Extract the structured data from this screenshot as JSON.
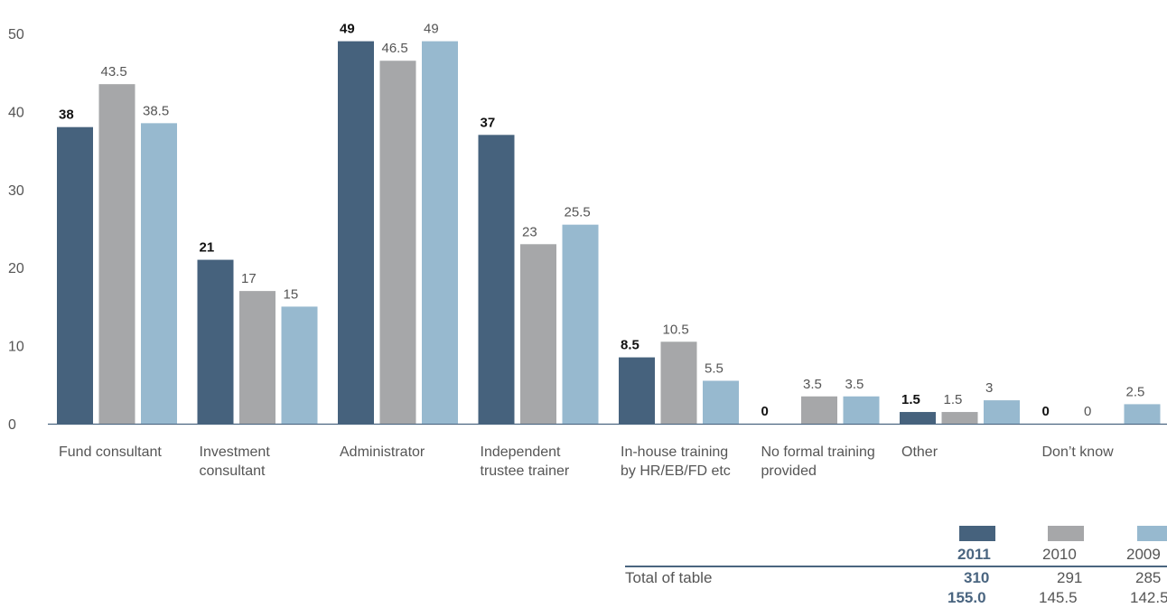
{
  "chart_data": {
    "type": "bar",
    "categories": [
      "Fund consultant",
      "Investment\nconsultant",
      "Administrator",
      "Independent\ntrustee trainer",
      "In-house training\nby HR/EB/FD etc",
      "No formal training\nprovided",
      "Other",
      "Don’t know"
    ],
    "series": [
      {
        "name": "2011",
        "color": "#46627d",
        "values": [
          38,
          21,
          49,
          37,
          8.5,
          0,
          1.5,
          0
        ],
        "labels": [
          "38",
          "21",
          "49",
          "37",
          "8.5",
          "0",
          "1.5",
          "0"
        ]
      },
      {
        "name": "2010",
        "color": "#a6a7a9",
        "values": [
          43.5,
          17,
          46.5,
          23,
          10.5,
          3.5,
          1.5,
          0
        ],
        "labels": [
          "43.5",
          "17",
          "46.5",
          "23",
          "10.5",
          "3.5",
          "1.5",
          "0"
        ]
      },
      {
        "name": "2009",
        "color": "#97b9cf",
        "values": [
          38.5,
          15,
          49,
          25.5,
          5.5,
          3.5,
          3,
          2.5
        ],
        "labels": [
          "38.5",
          "15",
          "49",
          "25.5",
          "5.5",
          "3.5",
          "3",
          "2.5"
        ]
      }
    ],
    "yticks": [
      "0",
      "10",
      "20",
      "30",
      "40",
      "50"
    ],
    "ylim": [
      0,
      50
    ],
    "grid": false
  },
  "legend": {
    "years": [
      "2011",
      "2010",
      "2009"
    ],
    "row_label": "Total of table",
    "totals": [
      "310",
      "291",
      "285"
    ],
    "halves": [
      "155.0",
      "145.5",
      "142.5"
    ]
  }
}
